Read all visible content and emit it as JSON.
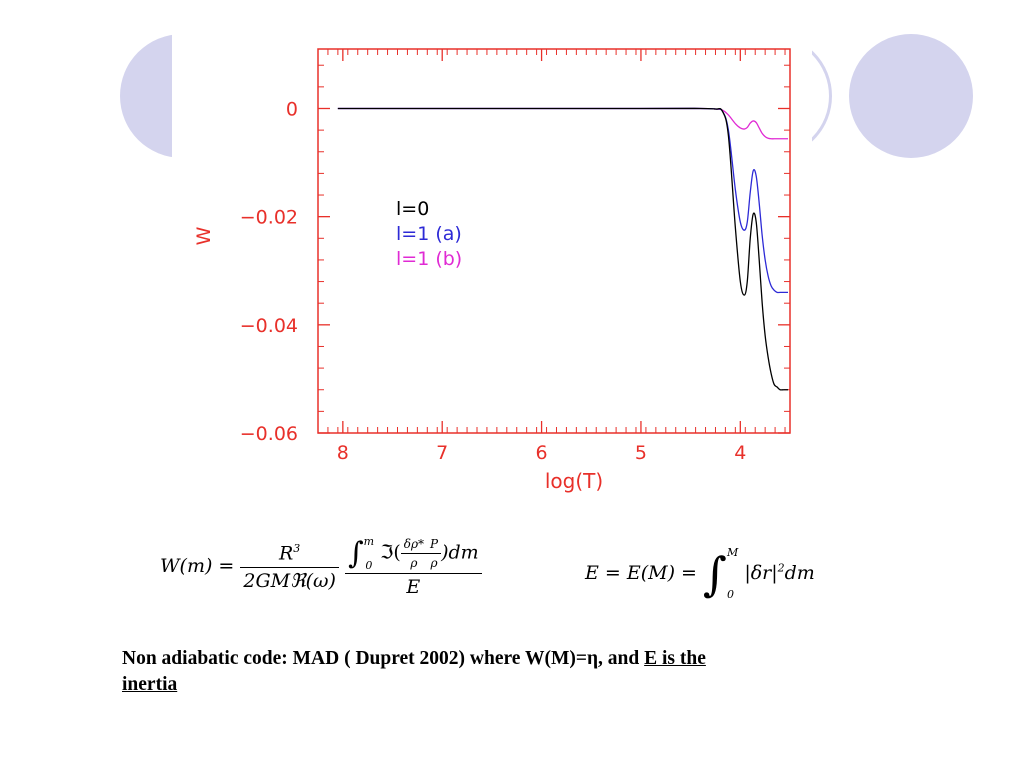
{
  "chart_data": {
    "type": "line",
    "xlabel": "log(T)",
    "ylabel": "W",
    "xlim": [
      8.25,
      3.5
    ],
    "ylim": [
      -0.06,
      0.011
    ],
    "x_ticks": [
      8,
      7,
      6,
      5,
      4
    ],
    "x_tick_labels": [
      "8",
      "7",
      "6",
      "5",
      "4"
    ],
    "y_ticks": [
      0,
      -0.02,
      -0.04,
      -0.06
    ],
    "y_tick_labels": [
      "0",
      "−0.02",
      "−0.04",
      "−0.06"
    ],
    "legend_position": "center-left",
    "grid": false,
    "axis_color": "#e8302a",
    "series": [
      {
        "name": "l=0",
        "color": "#000000",
        "x": [
          8.05,
          5.0,
          4.4,
          4.25,
          4.18,
          4.12,
          4.05,
          4.0,
          3.96,
          3.93,
          3.9,
          3.87,
          3.84,
          3.81,
          3.78,
          3.75,
          3.72,
          3.69,
          3.66,
          3.63,
          3.6,
          3.56,
          3.52
        ],
        "y": [
          0,
          0,
          0,
          -0.0001,
          -0.0005,
          -0.005,
          -0.022,
          -0.032,
          -0.0345,
          -0.032,
          -0.024,
          -0.0195,
          -0.021,
          -0.028,
          -0.036,
          -0.042,
          -0.046,
          -0.049,
          -0.051,
          -0.0515,
          -0.052,
          -0.052,
          -0.052
        ]
      },
      {
        "name": "l=1 (a)",
        "color": "#2d2ad6",
        "x": [
          8.05,
          5.0,
          4.4,
          4.25,
          4.18,
          4.12,
          4.05,
          4.0,
          3.96,
          3.93,
          3.9,
          3.87,
          3.84,
          3.81,
          3.78,
          3.75,
          3.72,
          3.69,
          3.66,
          3.63,
          3.6,
          3.56,
          3.52
        ],
        "y": [
          0,
          0,
          0,
          -0.0001,
          -0.0005,
          -0.004,
          -0.015,
          -0.021,
          -0.0225,
          -0.021,
          -0.0155,
          -0.0115,
          -0.0125,
          -0.0175,
          -0.0235,
          -0.028,
          -0.031,
          -0.0328,
          -0.0336,
          -0.034,
          -0.034,
          -0.034,
          -0.034
        ]
      },
      {
        "name": "l=1 (b)",
        "color": "#e02ad4",
        "x": [
          8.05,
          5.0,
          4.4,
          4.25,
          4.18,
          4.12,
          4.05,
          4.0,
          3.96,
          3.93,
          3.9,
          3.87,
          3.84,
          3.81,
          3.78,
          3.75,
          3.72,
          3.69,
          3.66,
          3.63,
          3.6,
          3.56,
          3.52
        ],
        "y": [
          0,
          0,
          0,
          -0.0001,
          -0.0003,
          -0.0012,
          -0.0028,
          -0.0036,
          -0.0038,
          -0.0035,
          -0.0027,
          -0.0023,
          -0.0026,
          -0.0036,
          -0.0046,
          -0.0052,
          -0.0055,
          -0.0056,
          -0.0056,
          -0.0056,
          -0.0056,
          -0.0056,
          -0.0056
        ]
      }
    ]
  },
  "formulas": {
    "w_equals": "W(m) =",
    "r_cubed": "R",
    "r_exp": "3",
    "denominator": "2GMℜ(ω)",
    "integral_upper": "m",
    "integral_lower": "0",
    "integrand_pre": "ℑ(",
    "drho_star": "δρ*",
    "rho_1": "ρ",
    "p_over": "P",
    "rho_2": "ρ",
    "integrand_post": ")dm",
    "e_denominator": "E",
    "e_lhs": "E = E(M) =",
    "e_upper": "M",
    "e_lower": "0",
    "e_integrand": "|δr|",
    "e_exp": "2",
    "e_dm": "dm"
  },
  "caption": {
    "text_main": "Non adiabatic code: MAD ( Dupret 2002)  where  W(M)=η, and ",
    "text_underlined_1": "E is the",
    "text_underlined_2": "inertia"
  },
  "colors": {
    "decoration": "#d4d4ee",
    "axis": "#e8302a"
  }
}
